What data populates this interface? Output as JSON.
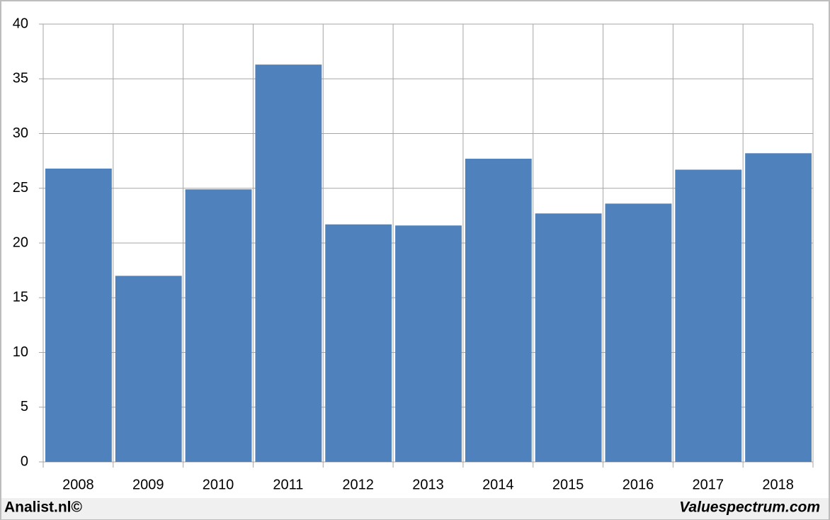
{
  "chart_data": {
    "type": "bar",
    "categories": [
      "2008",
      "2009",
      "2010",
      "2011",
      "2012",
      "2013",
      "2014",
      "2015",
      "2016",
      "2017",
      "2018"
    ],
    "values": [
      26.8,
      17.0,
      24.9,
      36.3,
      21.7,
      21.6,
      27.7,
      22.7,
      23.6,
      26.7,
      28.2
    ],
    "color": "#4f81bd",
    "ylim": [
      0,
      40
    ],
    "yticks": [
      0,
      5,
      10,
      15,
      20,
      25,
      30,
      35,
      40
    ],
    "grid": true,
    "credits": [
      "Analist.nl©",
      "Valuespectrum.com"
    ]
  }
}
